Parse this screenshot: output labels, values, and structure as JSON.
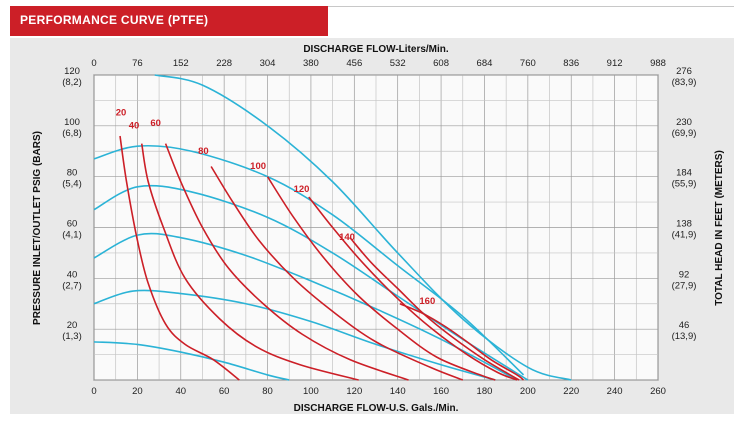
{
  "header": {
    "title": "PERFORMANCE CURVE  (PTFE)"
  },
  "chart_data": {
    "type": "line",
    "x_top": {
      "label": "DISCHARGE FLOW-Liters/Min.",
      "ticks": [
        "0",
        "76",
        "152",
        "228",
        "304",
        "380",
        "456",
        "532",
        "608",
        "684",
        "760",
        "836",
        "912",
        "988"
      ]
    },
    "x_bottom": {
      "label": "DISCHARGE FLOW-U.S. Gals./Min.",
      "ticks": [
        "0",
        "20",
        "40",
        "60",
        "80",
        "100",
        "120",
        "140",
        "160",
        "180",
        "200",
        "220",
        "240",
        "260"
      ],
      "xlim": [
        0,
        260
      ]
    },
    "y_left": {
      "label": "PRESSURE INLET/OUTLET PSIG (BARS)",
      "ylim": [
        0,
        120
      ],
      "ticks": [
        {
          "value": 120,
          "psi": "120",
          "bar": "(8,2)"
        },
        {
          "value": 100,
          "psi": "100",
          "bar": "(6,8)"
        },
        {
          "value": 80,
          "psi": "80",
          "bar": "(5,4)"
        },
        {
          "value": 60,
          "psi": "60",
          "bar": "(4,1)"
        },
        {
          "value": 40,
          "psi": "40",
          "bar": "(2,7)"
        },
        {
          "value": 20,
          "psi": "20",
          "bar": "(1,3)"
        }
      ]
    },
    "y_right": {
      "label": "TOTAL HEAD IN FEET (METERS)",
      "ticks": [
        {
          "value": 120,
          "ft": "276",
          "m": "(83,9)"
        },
        {
          "value": 100,
          "ft": "230",
          "m": "(69,9)"
        },
        {
          "value": 80,
          "ft": "184",
          "m": "(55,9)"
        },
        {
          "value": 60,
          "ft": "138",
          "m": "(41,9)"
        },
        {
          "value": 40,
          "ft": "92",
          "m": "(27,9)"
        },
        {
          "value": 20,
          "ft": "46",
          "m": "(13,9)"
        }
      ]
    },
    "grid": true,
    "pressure_curves": [
      {
        "color": "#2bb3d6",
        "points": [
          [
            0,
            15
          ],
          [
            20,
            14
          ],
          [
            40,
            11
          ],
          [
            60,
            7
          ],
          [
            80,
            2
          ],
          [
            90,
            0
          ]
        ]
      },
      {
        "color": "#2bb3d6",
        "points": [
          [
            0,
            30
          ],
          [
            18,
            35
          ],
          [
            40,
            34
          ],
          [
            70,
            30
          ],
          [
            100,
            23
          ],
          [
            130,
            14
          ],
          [
            160,
            6
          ],
          [
            185,
            0
          ]
        ]
      },
      {
        "color": "#2bb3d6",
        "points": [
          [
            0,
            48
          ],
          [
            20,
            57
          ],
          [
            40,
            56
          ],
          [
            70,
            49
          ],
          [
            100,
            39
          ],
          [
            130,
            28
          ],
          [
            160,
            16
          ],
          [
            195,
            0
          ]
        ]
      },
      {
        "color": "#2bb3d6",
        "points": [
          [
            0,
            67
          ],
          [
            20,
            76
          ],
          [
            45,
            74
          ],
          [
            80,
            64
          ],
          [
            110,
            50
          ],
          [
            140,
            33
          ],
          [
            170,
            16
          ],
          [
            200,
            0
          ]
        ]
      },
      {
        "color": "#2bb3d6",
        "points": [
          [
            0,
            87
          ],
          [
            20,
            92
          ],
          [
            45,
            90
          ],
          [
            80,
            80
          ],
          [
            110,
            65
          ],
          [
            140,
            45
          ],
          [
            170,
            25
          ],
          [
            198,
            2
          ]
        ]
      },
      {
        "color": "#2bb3d6",
        "points": [
          [
            28,
            120
          ],
          [
            50,
            116
          ],
          [
            80,
            100
          ],
          [
            110,
            78
          ],
          [
            140,
            50
          ],
          [
            170,
            24
          ],
          [
            200,
            5
          ],
          [
            220,
            0
          ]
        ]
      }
    ],
    "air_curves": [
      {
        "label": "20",
        "label_at": [
          10,
          104
        ],
        "color": "#cc1f27",
        "points": [
          [
            12,
            96
          ],
          [
            15,
            78
          ],
          [
            20,
            55
          ],
          [
            25,
            38
          ],
          [
            33,
            22
          ],
          [
            42,
            14
          ],
          [
            55,
            8
          ],
          [
            67,
            0
          ]
        ]
      },
      {
        "label": "40",
        "label_at": [
          16,
          99
        ],
        "color": "#cc1f27",
        "points": [
          [
            22,
            93
          ],
          [
            25,
            78
          ],
          [
            32,
            60
          ],
          [
            42,
            40
          ],
          [
            58,
            24
          ],
          [
            75,
            13
          ],
          [
            95,
            6
          ],
          [
            122,
            0
          ]
        ]
      },
      {
        "label": "60",
        "label_at": [
          26,
          100
        ],
        "color": "#cc1f27",
        "points": [
          [
            33,
            93
          ],
          [
            40,
            78
          ],
          [
            50,
            60
          ],
          [
            62,
            44
          ],
          [
            78,
            30
          ],
          [
            96,
            18
          ],
          [
            118,
            8
          ],
          [
            145,
            0
          ]
        ]
      },
      {
        "label": "80",
        "label_at": [
          48,
          89
        ],
        "color": "#cc1f27",
        "points": [
          [
            54,
            84
          ],
          [
            64,
            70
          ],
          [
            76,
            55
          ],
          [
            92,
            40
          ],
          [
            110,
            27
          ],
          [
            130,
            15
          ],
          [
            155,
            5
          ],
          [
            170,
            0
          ]
        ]
      },
      {
        "label": "100",
        "label_at": [
          72,
          83
        ],
        "color": "#cc1f27",
        "points": [
          [
            80,
            80
          ],
          [
            92,
            64
          ],
          [
            106,
            48
          ],
          [
            122,
            33
          ],
          [
            140,
            20
          ],
          [
            158,
            9
          ],
          [
            178,
            2
          ],
          [
            185,
            0
          ]
        ]
      },
      {
        "label": "120",
        "label_at": [
          92,
          74
        ],
        "color": "#cc1f27",
        "points": [
          [
            99,
            72
          ],
          [
            110,
            60
          ],
          [
            124,
            46
          ],
          [
            140,
            32
          ],
          [
            156,
            20
          ],
          [
            172,
            10
          ],
          [
            186,
            3
          ],
          [
            195,
            0
          ]
        ]
      },
      {
        "label": "140",
        "label_at": [
          113,
          55
        ],
        "color": "#cc1f27",
        "points": [
          [
            118,
            56
          ],
          [
            128,
            46
          ],
          [
            140,
            36
          ],
          [
            152,
            26
          ],
          [
            165,
            17
          ],
          [
            180,
            8
          ],
          [
            196,
            0
          ]
        ]
      },
      {
        "label": "160",
        "label_at": [
          150,
          30
        ],
        "color": "#cc1f27",
        "points": [
          [
            141,
            30
          ],
          [
            152,
            26
          ],
          [
            162,
            21
          ],
          [
            172,
            15
          ],
          [
            183,
            8
          ],
          [
            195,
            2
          ],
          [
            198,
            0
          ]
        ]
      }
    ]
  }
}
